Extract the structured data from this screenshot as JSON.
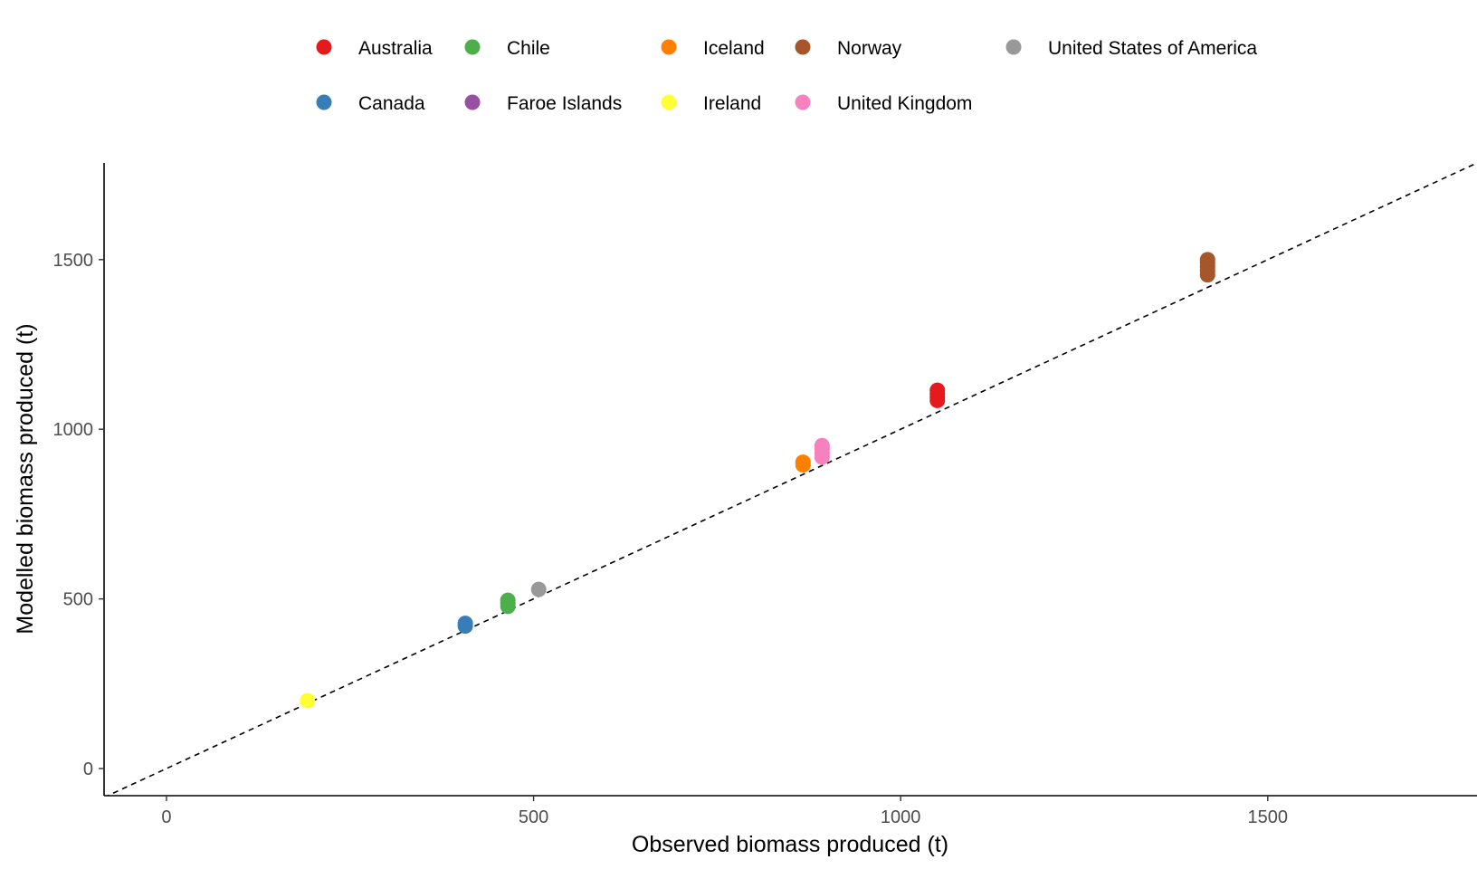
{
  "chart_data": {
    "type": "scatter",
    "xlabel": "Observed biomass produced (t)",
    "ylabel": "Modelled biomass produced (t)",
    "xlim": [
      -85,
      1785
    ],
    "ylim": [
      -80,
      1785
    ],
    "xticks": [
      0,
      500,
      1000,
      1500
    ],
    "yticks": [
      0,
      500,
      1000,
      1500
    ],
    "grid": false,
    "legend_position": "top",
    "reference_line": {
      "type": "identity",
      "style": "dashed",
      "color": "#000000"
    },
    "series": [
      {
        "name": "Australia",
        "color": "#E41A1C",
        "points": [
          [
            1050,
            1085
          ],
          [
            1050,
            1095
          ],
          [
            1050,
            1105
          ],
          [
            1050,
            1115
          ]
        ]
      },
      {
        "name": "Canada",
        "color": "#377EB8",
        "points": [
          [
            407,
            420
          ],
          [
            407,
            428
          ]
        ]
      },
      {
        "name": "Chile",
        "color": "#4DAF4A",
        "points": [
          [
            465,
            478
          ],
          [
            465,
            487
          ],
          [
            465,
            496
          ]
        ]
      },
      {
        "name": "Faroe Islands",
        "color": "#984EA3",
        "points": []
      },
      {
        "name": "Iceland",
        "color": "#FF7F00",
        "points": [
          [
            867,
            895
          ],
          [
            867,
            903
          ]
        ]
      },
      {
        "name": "Ireland",
        "color": "#FFFF33",
        "points": [
          [
            192,
            200
          ]
        ]
      },
      {
        "name": "Norway",
        "color": "#A65628",
        "points": [
          [
            1418,
            1455
          ],
          [
            1418,
            1467
          ],
          [
            1418,
            1479
          ],
          [
            1418,
            1491
          ],
          [
            1418,
            1500
          ]
        ]
      },
      {
        "name": "United Kingdom",
        "color": "#F781BF",
        "points": [
          [
            893,
            918
          ],
          [
            893,
            930
          ],
          [
            893,
            942
          ],
          [
            893,
            952
          ]
        ]
      },
      {
        "name": "United States of America",
        "color": "#999999",
        "points": [
          [
            507,
            528
          ]
        ]
      }
    ]
  }
}
